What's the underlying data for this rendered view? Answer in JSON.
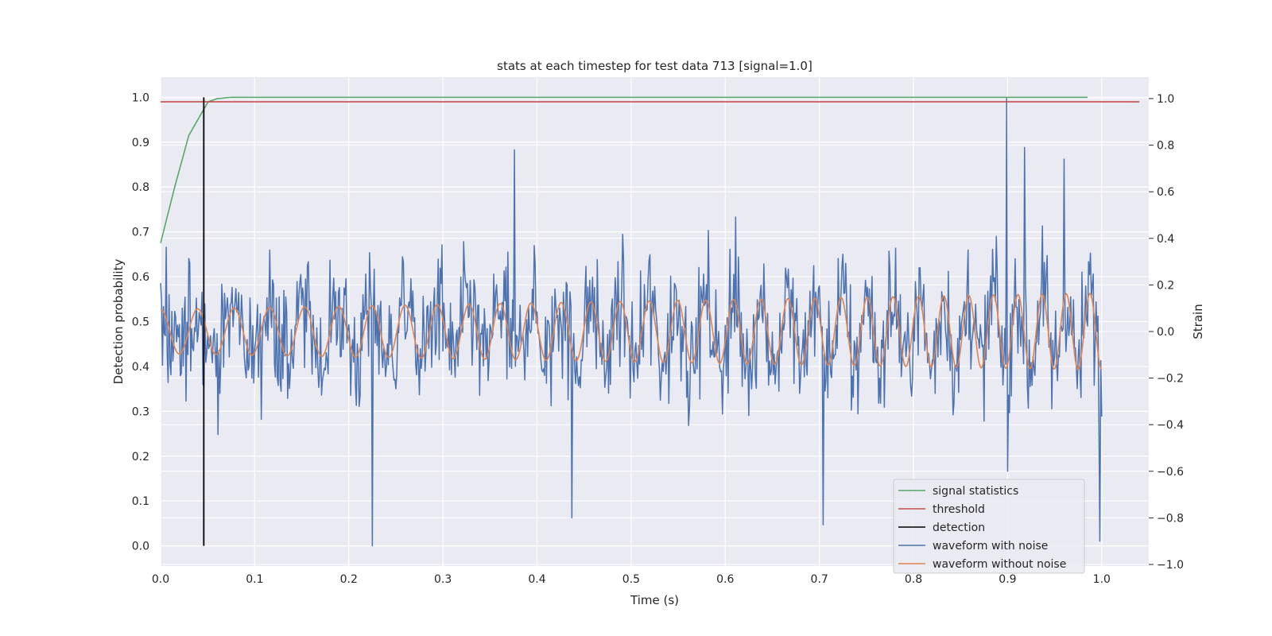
{
  "chart_data": {
    "type": "line",
    "title": "stats at each timestep for test data 713 [signal=1.0]",
    "xlabel": "Time (s)",
    "ylabel_left": "Detection probability",
    "ylabel_right": "Strain",
    "xlim": [
      0.0,
      1.05
    ],
    "ylim_left": [
      -0.045,
      1.045
    ],
    "ylim_right": [
      -1.0,
      1.0
    ],
    "x_ticks": [
      "0.0",
      "0.1",
      "0.2",
      "0.3",
      "0.4",
      "0.5",
      "0.6",
      "0.7",
      "0.8",
      "0.9",
      "1.0"
    ],
    "y_left_ticks": [
      "0.0",
      "0.1",
      "0.2",
      "0.3",
      "0.4",
      "0.5",
      "0.6",
      "0.7",
      "0.8",
      "0.9",
      "1.0"
    ],
    "y_right_ticks": [
      "−1.0",
      "−0.8",
      "−0.6",
      "−0.4",
      "−0.2",
      "0.0",
      "0.2",
      "0.4",
      "0.6",
      "0.8",
      "1.0"
    ],
    "grid": true,
    "legend_position": "bottom-right",
    "series": [
      {
        "name": "signal statistics",
        "axis": "left",
        "color": "#55a868",
        "x": [
          0.0,
          0.015,
          0.03,
          0.045,
          0.0506,
          0.06,
          0.075,
          0.1,
          0.2,
          0.4,
          0.6,
          0.8,
          0.985
        ],
        "y": [
          0.675,
          0.8,
          0.915,
          0.97,
          0.99,
          0.997,
          1.0,
          1.0,
          1.0,
          1.0,
          1.0,
          1.0,
          1.0
        ]
      },
      {
        "name": "threshold",
        "axis": "left",
        "color": "#c44e52",
        "x": [
          0.0,
          1.04
        ],
        "y": [
          0.99,
          0.99
        ]
      },
      {
        "name": "detection",
        "axis": "left",
        "color": "#000000",
        "x": [
          0.0459,
          0.0459
        ],
        "y": [
          0.0,
          1.0
        ]
      },
      {
        "name": "waveform with noise",
        "axis": "right",
        "color": "#4c72b0",
        "generated": "noise",
        "n_points": 1000,
        "x_range": [
          0.0,
          1.0
        ],
        "amplitude": 0.26,
        "extremes": [
          {
            "x": 0.225,
            "y": -0.92
          },
          {
            "x": 0.376,
            "y": 0.78
          },
          {
            "x": 0.437,
            "y": -0.8
          },
          {
            "x": 0.704,
            "y": -0.83
          },
          {
            "x": 0.899,
            "y": 1.0
          },
          {
            "x": 0.9,
            "y": -0.6
          },
          {
            "x": 0.918,
            "y": 0.79
          },
          {
            "x": 0.96,
            "y": 0.74
          },
          {
            "x": 0.998,
            "y": -0.9
          }
        ]
      },
      {
        "name": "waveform without noise",
        "axis": "right",
        "color": "#dd8452",
        "generated": "chirp",
        "x_range": [
          0.0,
          1.0
        ],
        "start_frequency_hz": 25,
        "end_frequency_hz": 40,
        "start_amplitude": 0.095,
        "end_amplitude": 0.165
      }
    ]
  }
}
